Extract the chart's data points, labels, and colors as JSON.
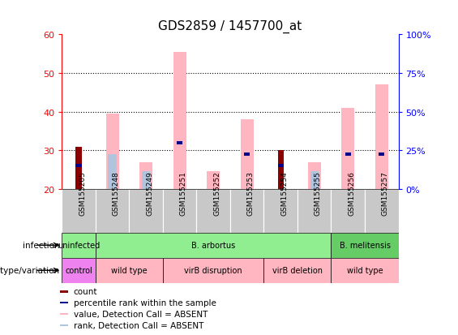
{
  "title": "GDS2859 / 1457700_at",
  "samples": [
    "GSM155205",
    "GSM155248",
    "GSM155249",
    "GSM155251",
    "GSM155252",
    "GSM155253",
    "GSM155254",
    "GSM155255",
    "GSM155256",
    "GSM155257"
  ],
  "ylim": [
    20,
    60
  ],
  "y2lim": [
    0,
    100
  ],
  "yticks": [
    20,
    30,
    40,
    50,
    60
  ],
  "y2ticks": [
    0,
    25,
    50,
    75,
    100
  ],
  "y2ticklabels": [
    "0%",
    "25%",
    "50%",
    "75%",
    "100%"
  ],
  "bar_bottom": 20,
  "count_values": [
    31,
    0,
    0,
    0,
    0,
    0,
    30,
    0,
    0,
    0
  ],
  "pct_rank_values": [
    26,
    0,
    0,
    32,
    0,
    29,
    26,
    0,
    29,
    29
  ],
  "value_absent": [
    0,
    39.5,
    27,
    55.5,
    24.5,
    38,
    0,
    27,
    41,
    47
  ],
  "rank_absent": [
    0,
    29,
    24.5,
    0,
    0,
    0,
    0,
    24.5,
    0,
    0
  ],
  "infection_groups": [
    {
      "label": "uninfected",
      "start": 0,
      "end": 1,
      "color": "#90EE90"
    },
    {
      "label": "B. arbortus",
      "start": 1,
      "end": 8,
      "color": "#90EE90"
    },
    {
      "label": "B. melitensis",
      "start": 8,
      "end": 10,
      "color": "#66CC66"
    }
  ],
  "genotype_groups": [
    {
      "label": "control",
      "start": 0,
      "end": 1,
      "color": "#EE82EE"
    },
    {
      "label": "wild type",
      "start": 1,
      "end": 3,
      "color": "#FFB6C1"
    },
    {
      "label": "virB disruption",
      "start": 3,
      "end": 6,
      "color": "#FFB6C1"
    },
    {
      "label": "virB deletion",
      "start": 6,
      "end": 8,
      "color": "#FFB6C1"
    },
    {
      "label": "wild type",
      "start": 8,
      "end": 10,
      "color": "#FFB6C1"
    }
  ],
  "color_count": "#8B0000",
  "color_pct_rank": "#00008B",
  "color_value_absent": "#FFB6C1",
  "color_rank_absent": "#B0C4DE",
  "sample_box_color": "#C8C8C8",
  "grid_color": "black",
  "title_fontsize": 11,
  "tick_fontsize": 8,
  "label_fontsize": 7.5
}
